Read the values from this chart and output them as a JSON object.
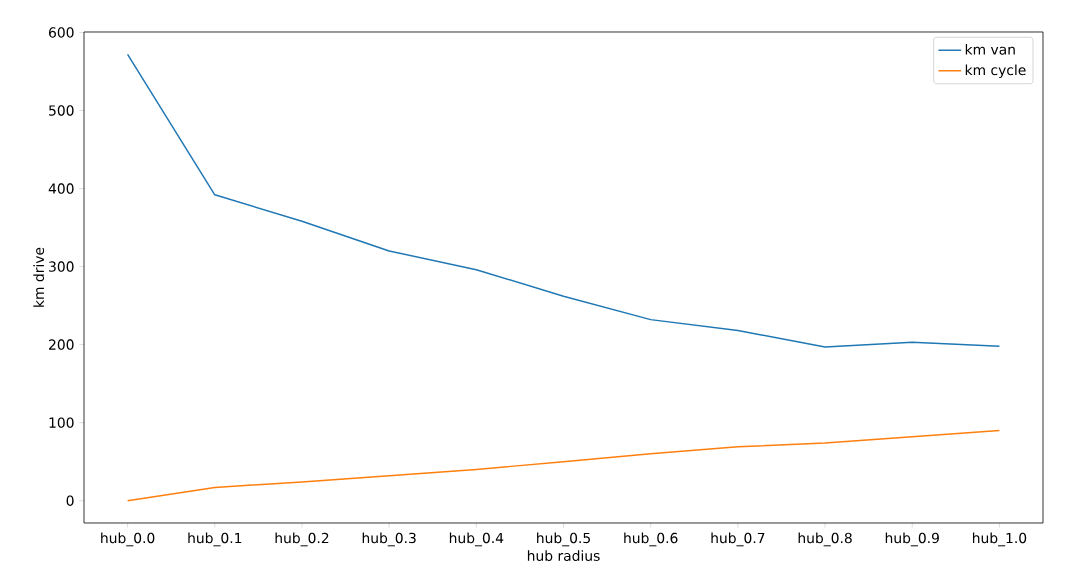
{
  "chart_data": {
    "type": "line",
    "xlabel": "hub radius",
    "ylabel": "km drive",
    "categories": [
      "hub_0.0",
      "hub_0.1",
      "hub_0.2",
      "hub_0.3",
      "hub_0.4",
      "hub_0.5",
      "hub_0.6",
      "hub_0.7",
      "hub_0.8",
      "hub_0.9",
      "hub_1.0"
    ],
    "series": [
      {
        "name": "km van",
        "color": "#1f77b4",
        "values": [
          572,
          392,
          358,
          320,
          296,
          262,
          232,
          218,
          197,
          203,
          198
        ]
      },
      {
        "name": "km cycle",
        "color": "#ff7f0e",
        "values": [
          0,
          17,
          24,
          32,
          40,
          50,
          60,
          69,
          74,
          82,
          90
        ]
      }
    ],
    "ylim": [
      -28.6,
      600.6
    ],
    "yticks": [
      0,
      100,
      200,
      300,
      400,
      500,
      600
    ],
    "legend": "top right",
    "grid": false,
    "marker": "none",
    "line_style": "solid"
  }
}
